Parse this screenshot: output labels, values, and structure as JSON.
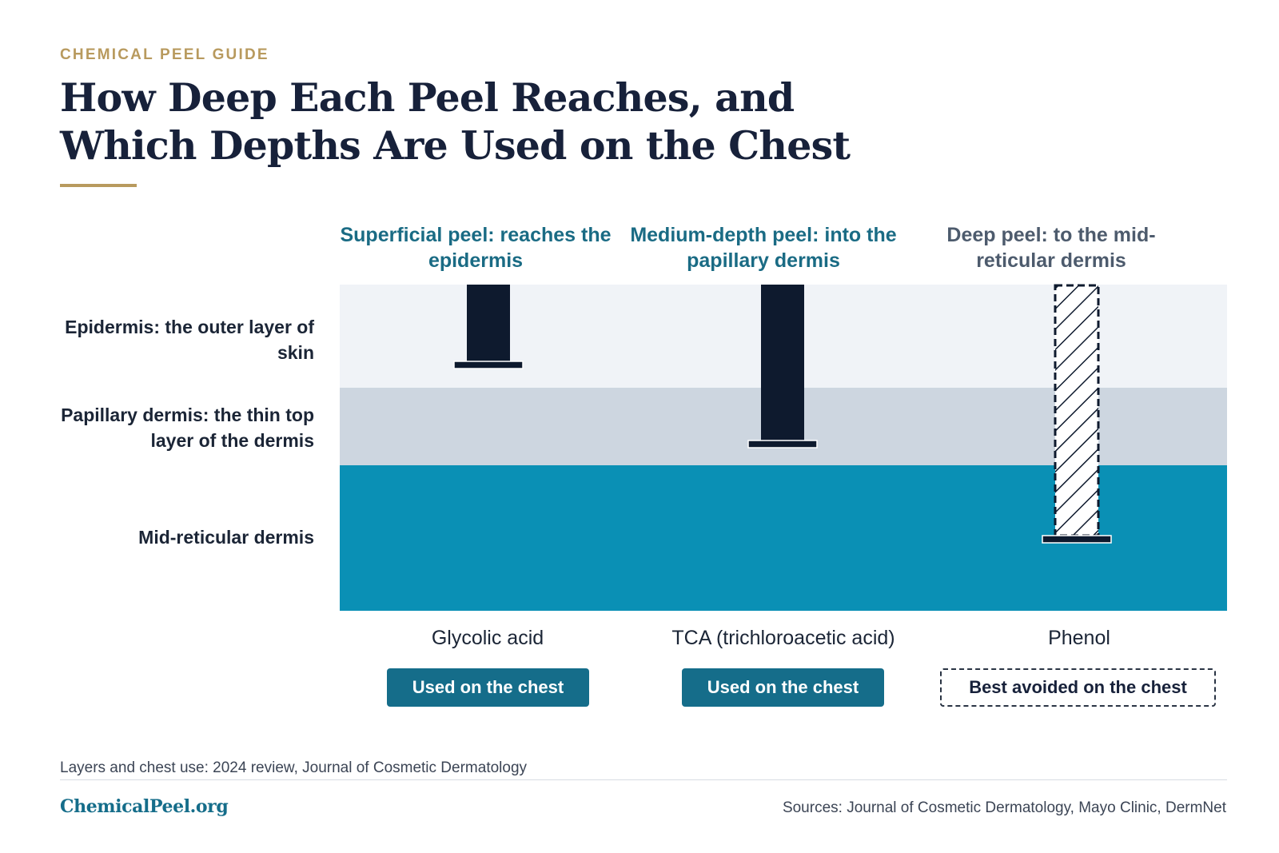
{
  "header": {
    "kicker": "CHEMICAL PEEL GUIDE",
    "title": "How Deep Each Peel Reaches, and Which Depths Are Used on the Chest"
  },
  "layers": [
    {
      "label": "Epidermis: the outer layer of skin",
      "color": "#f0f3f7"
    },
    {
      "label": "Papillary dermis: the thin top layer of the dermis",
      "color": "#cdd6e0"
    },
    {
      "label": "Mid-reticular dermis",
      "color": "#0a90b5"
    }
  ],
  "peels": [
    {
      "heading": "Superficial peel: reaches the epidermis",
      "agent": "Glycolic acid",
      "depth_layer": "Epidermis",
      "chest_use": "Used on the chest",
      "used_on_chest": true
    },
    {
      "heading": "Medium-depth peel: into the papillary dermis",
      "agent": "TCA (trichloroacetic acid)",
      "depth_layer": "Papillary dermis",
      "chest_use": "Used on the chest",
      "used_on_chest": true
    },
    {
      "heading": "Deep peel: to the mid-reticular dermis",
      "agent": "Phenol",
      "depth_layer": "Mid-reticular dermis",
      "chest_use": "Best avoided on the chest",
      "used_on_chest": false
    }
  ],
  "colors": {
    "accent_gold": "#b89a5e",
    "heading_teal": "#1a6b84",
    "bar_navy": "#0e1a2e",
    "badge_teal": "#156d8a"
  },
  "footer": {
    "note": "Layers and chest use: 2024 review, Journal of Cosmetic Dermatology",
    "brand": "ChemicalPeel.org",
    "sources": "Sources: Journal of Cosmetic Dermatology, Mayo Clinic, DermNet"
  }
}
